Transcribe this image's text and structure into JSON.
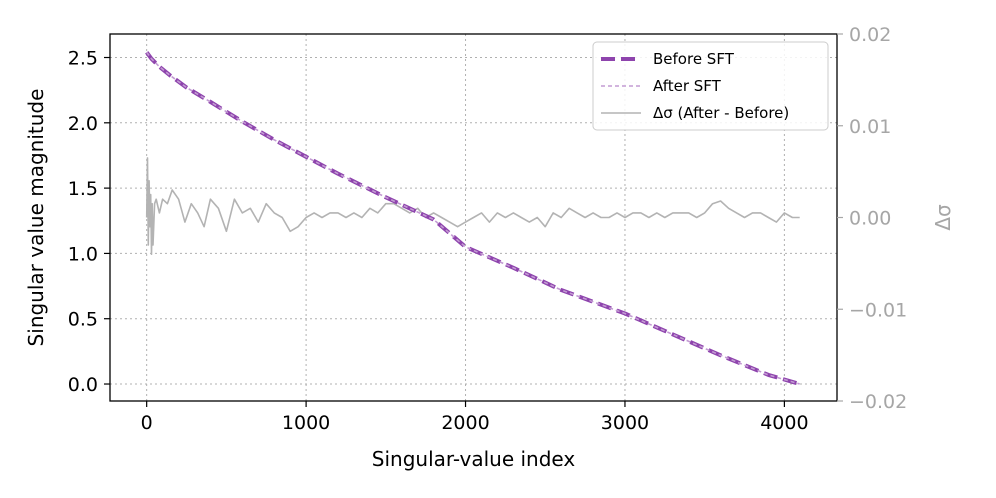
{
  "chart_data": {
    "type": "line",
    "title": "",
    "xlabel": "Singular-value index",
    "ylabel": "Singular value magnitude",
    "ylabel_right": "Δσ",
    "xlim": [
      -230,
      4330
    ],
    "ylim": [
      -0.13,
      2.68
    ],
    "ylim_right": [
      -0.02,
      0.02
    ],
    "xticks": [
      0,
      1000,
      2000,
      3000,
      4000
    ],
    "xtick_labels": [
      "0",
      "1000",
      "2000",
      "3000",
      "4000"
    ],
    "yticks": [
      0.0,
      0.5,
      1.0,
      1.5,
      2.0,
      2.5
    ],
    "ytick_labels": [
      "0.0",
      "0.5",
      "1.0",
      "1.5",
      "2.0",
      "2.5"
    ],
    "yticks_right": [
      0.02,
      0.01,
      0.0,
      -0.01,
      -0.02
    ],
    "ytick_labels_right": [
      "0.02",
      "0.01",
      "0.00",
      "−0.01",
      "−0.02"
    ],
    "grid": true,
    "legend_position": "top-right",
    "series": [
      {
        "name": "Before SFT",
        "axis": "left",
        "style": "dashed-thick",
        "color": "#8e44ad",
        "x": [
          0,
          30,
          80,
          150,
          250,
          400,
          600,
          800,
          1000,
          1200,
          1500,
          1800,
          2000,
          2300,
          2600,
          3000,
          3300,
          3600,
          3900,
          4096
        ],
        "y": [
          2.54,
          2.49,
          2.43,
          2.36,
          2.27,
          2.16,
          2.01,
          1.87,
          1.74,
          1.61,
          1.43,
          1.26,
          1.05,
          0.89,
          0.72,
          0.54,
          0.38,
          0.22,
          0.07,
          0.0
        ]
      },
      {
        "name": "After SFT",
        "axis": "left",
        "style": "dashed-thin",
        "color": "#c39bd3",
        "x": [
          0,
          30,
          80,
          150,
          250,
          400,
          600,
          800,
          1000,
          1200,
          1500,
          1800,
          2000,
          2300,
          2600,
          3000,
          3300,
          3600,
          3900,
          4096
        ],
        "y": [
          2.54,
          2.49,
          2.43,
          2.36,
          2.27,
          2.16,
          2.01,
          1.87,
          1.74,
          1.61,
          1.43,
          1.26,
          1.05,
          0.89,
          0.72,
          0.54,
          0.38,
          0.22,
          0.07,
          0.0
        ]
      },
      {
        "name": "Δσ (After - Before)",
        "axis": "right",
        "style": "solid",
        "color": "#b3b3b3",
        "x": [
          0,
          5,
          10,
          15,
          20,
          25,
          30,
          35,
          40,
          50,
          60,
          80,
          100,
          130,
          160,
          200,
          240,
          280,
          320,
          360,
          400,
          450,
          500,
          550,
          600,
          650,
          700,
          750,
          800,
          850,
          900,
          950,
          1000,
          1050,
          1100,
          1150,
          1200,
          1250,
          1300,
          1350,
          1400,
          1450,
          1500,
          1550,
          1600,
          1650,
          1700,
          1750,
          1800,
          1850,
          1900,
          1950,
          2000,
          2050,
          2100,
          2150,
          2200,
          2250,
          2300,
          2350,
          2400,
          2450,
          2500,
          2550,
          2600,
          2650,
          2700,
          2750,
          2800,
          2850,
          2900,
          2950,
          3000,
          3050,
          3100,
          3150,
          3200,
          3250,
          3300,
          3350,
          3400,
          3450,
          3500,
          3550,
          3600,
          3650,
          3700,
          3750,
          3800,
          3850,
          3900,
          3950,
          4000,
          4050,
          4096
        ],
        "y": [
          0.0,
          0.0065,
          -0.003,
          0.004,
          -0.001,
          0.0025,
          -0.004,
          0.0015,
          -0.003,
          0.0015,
          0.002,
          0.0005,
          0.002,
          0.0015,
          0.003,
          0.002,
          -0.0005,
          0.0015,
          0.0005,
          -0.001,
          0.002,
          0.001,
          -0.0015,
          0.002,
          0.0005,
          0.001,
          -0.0005,
          0.0015,
          0.0005,
          0.0,
          -0.0015,
          -0.001,
          0.0,
          0.0005,
          0.0,
          0.0005,
          0.0005,
          0.0,
          0.0005,
          0.0,
          0.001,
          0.0005,
          0.0015,
          0.0015,
          0.001,
          0.0005,
          0.001,
          0.0,
          0.0005,
          0.0,
          -0.0005,
          -0.001,
          -0.0005,
          0.0,
          0.0005,
          -0.0005,
          0.0005,
          0.0,
          0.0005,
          0.0,
          -0.0005,
          0.0,
          -0.001,
          0.0005,
          0.0,
          0.001,
          0.0005,
          0.0,
          0.0005,
          0.0,
          0.0,
          0.0005,
          0.0,
          0.0005,
          0.0005,
          0.0,
          0.0005,
          0.0,
          0.0005,
          0.0005,
          0.0005,
          0.0,
          0.0005,
          0.0015,
          0.0018,
          0.001,
          0.0005,
          0.0,
          0.0005,
          0.0005,
          0.0,
          -0.0005,
          0.0005,
          0.0,
          0.0
        ]
      }
    ]
  }
}
